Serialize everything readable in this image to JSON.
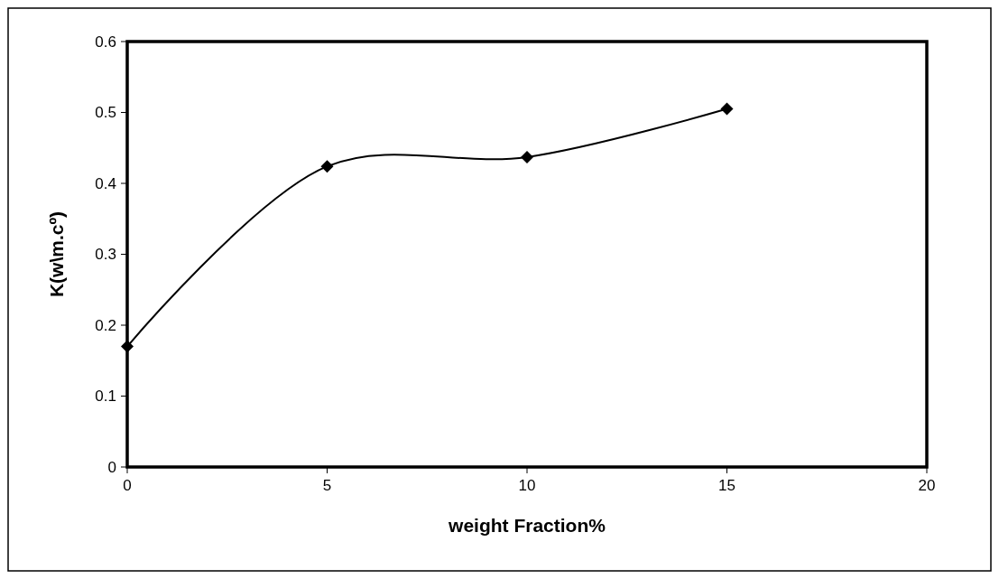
{
  "chart_data": {
    "type": "line",
    "xlabel": "weight Fraction%",
    "ylabel": "K(w\\m.cº)",
    "x": [
      0,
      5,
      10,
      15
    ],
    "series": [
      {
        "color": "#000000",
        "values": [
          0.17,
          0.424,
          0.437,
          0.505
        ]
      }
    ],
    "xlim": [
      0,
      20
    ],
    "xticks": [
      0,
      5,
      10,
      15,
      20
    ],
    "ylim": [
      0,
      0.6
    ],
    "yticks": [
      0,
      0.1,
      0.2,
      0.3,
      0.4,
      0.5,
      0.6
    ],
    "marker": "diamond",
    "line_style": "solid",
    "grid": false
  }
}
